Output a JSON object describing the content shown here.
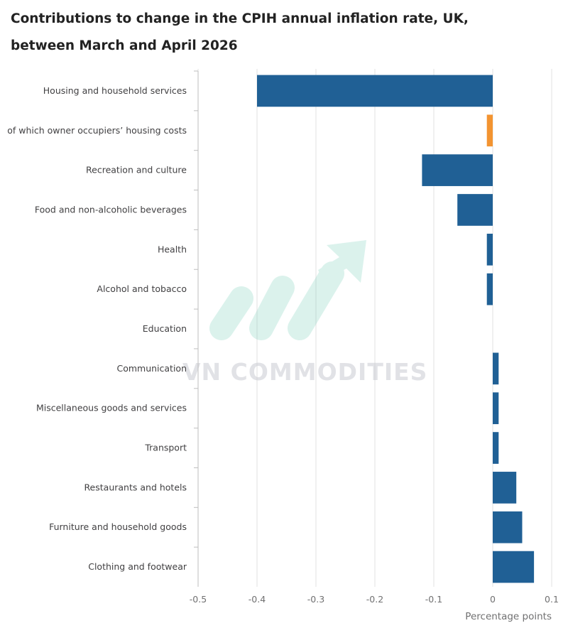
{
  "title": "Contributions to change in the CPIH annual inflation rate, UK, between March and April 2026",
  "watermark": "VN COMMODITIES",
  "colors": {
    "bar": "#206095",
    "highlight": "#f39431",
    "grid": "#e0e0e0",
    "axis": "#bebebe"
  },
  "chart_data": {
    "type": "bar",
    "orientation": "horizontal",
    "title": "Contributions to change in the CPIH annual inflation rate, UK, between March and April 2026",
    "xlabel": "Percentage points",
    "ylabel": "",
    "xlim": [
      -0.5,
      0.1
    ],
    "xticks": [
      -0.5,
      -0.4,
      -0.3,
      -0.2,
      -0.1,
      0,
      0.1
    ],
    "xtick_labels": [
      "-0.5",
      "-0.4",
      "-0.3",
      "-0.2",
      "-0.1",
      "0",
      "0.1"
    ],
    "grid": true,
    "categories": [
      "Housing and household services",
      "of which owner occupiers’ housing costs",
      "Recreation and culture",
      "Food and non-alcoholic beverages",
      "Health",
      "Alcohol and tobacco",
      "Education",
      "Communication",
      "Miscellaneous goods and services",
      "Transport",
      "Restaurants and hotels",
      "Furniture and household goods",
      "Clothing and footwear"
    ],
    "values": [
      -0.4,
      -0.01,
      -0.12,
      -0.06,
      -0.01,
      -0.01,
      0.0,
      0.01,
      0.01,
      0.01,
      0.04,
      0.05,
      0.07
    ],
    "highlight": [
      false,
      true,
      false,
      false,
      false,
      false,
      false,
      false,
      false,
      false,
      false,
      false,
      false
    ]
  }
}
